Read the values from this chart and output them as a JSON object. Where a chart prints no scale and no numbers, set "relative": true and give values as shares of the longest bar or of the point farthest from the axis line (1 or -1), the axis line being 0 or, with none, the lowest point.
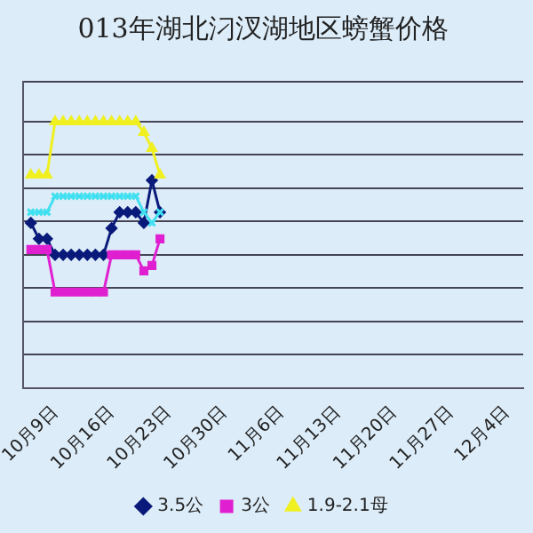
{
  "chart_data": {
    "type": "line",
    "title": "013年湖北汈汊湖地区螃蟹价格",
    "relative": true,
    "x": [
      "--10-06",
      "--10-07",
      "--10-08",
      "--10-09",
      "--10-10",
      "--10-11",
      "--10-12",
      "--10-13",
      "--10-14",
      "--10-15",
      "--10-16",
      "--10-17",
      "--10-18",
      "--10-19",
      "--10-20",
      "--10-21",
      "--10-22"
    ],
    "xlim": [
      "--10-05",
      "--12-06"
    ],
    "xticks": [
      {
        "value": "--10-09",
        "label": "10月9日"
      },
      {
        "value": "--10-16",
        "label": "10月16日"
      },
      {
        "value": "--10-23",
        "label": "10月23日"
      },
      {
        "value": "--10-30",
        "label": "10月30日"
      },
      {
        "value": "--11-06",
        "label": "11月6日"
      },
      {
        "value": "--11-13",
        "label": "11月13日"
      },
      {
        "value": "--11-20",
        "label": "11月20日"
      },
      {
        "value": "--11-27",
        "label": "11月27日"
      },
      {
        "value": "--12-04",
        "label": "12月4日"
      }
    ],
    "series": [
      {
        "name": "3.5公",
        "color": "#0a1a7a",
        "marker": "diamond",
        "values": [
          0.62,
          0.56,
          0.56,
          0.5,
          0.5,
          0.5,
          0.5,
          0.5,
          0.5,
          0.5,
          0.6,
          0.66,
          0.66,
          0.66,
          0.62,
          0.78,
          0.66
        ]
      },
      {
        "name": "3公",
        "color": "#e020d0",
        "marker": "square",
        "values": [
          0.52,
          0.52,
          0.52,
          0.36,
          0.36,
          0.36,
          0.36,
          0.36,
          0.36,
          0.36,
          0.5,
          0.5,
          0.5,
          0.5,
          0.44,
          0.46,
          0.56
        ]
      },
      {
        "name": "1.9-2.1母",
        "color": "#f0f020",
        "marker": "triangle",
        "values": [
          0.8,
          0.8,
          0.8,
          1,
          1,
          1,
          1,
          1,
          1,
          1,
          1,
          1,
          1,
          1,
          0.96,
          0.9,
          0.8
        ]
      },
      {
        "color": "#40e0f0",
        "marker": "cross",
        "values": [
          0.66,
          0.66,
          0.66,
          0.72,
          0.72,
          0.72,
          0.72,
          0.72,
          0.72,
          0.72,
          0.72,
          0.72,
          0.72,
          0.72,
          0.66,
          0.62,
          0.66
        ]
      }
    ],
    "grid": "y",
    "legend": "bottom"
  }
}
